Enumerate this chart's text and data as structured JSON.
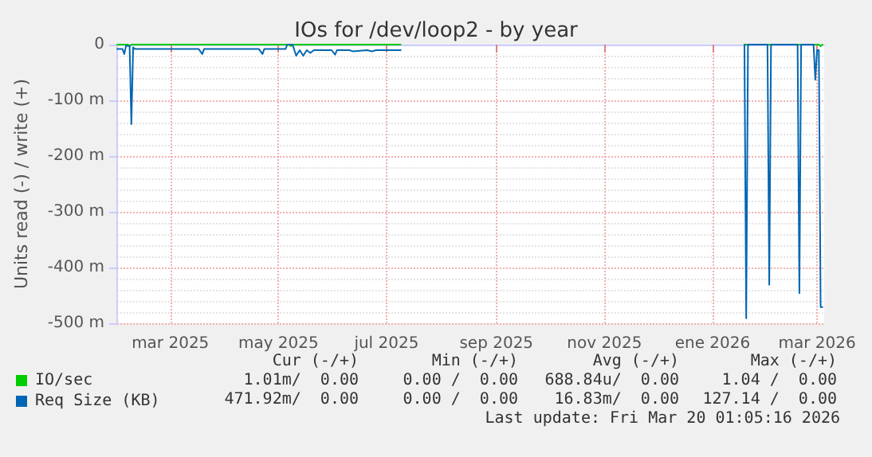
{
  "chart_data": {
    "type": "line",
    "title": "IOs for /dev/loop2 - by year",
    "ylabel": "Units read (-) / write (+)",
    "xlim": [
      "2025-02-14",
      "2026-03-20"
    ],
    "xticks": [
      {
        "value": "2025-03-16",
        "label": "mar 2025"
      },
      {
        "value": "2025-05-16",
        "label": "may 2025"
      },
      {
        "value": "2025-07-16",
        "label": "jul 2025"
      },
      {
        "value": "2025-09-16",
        "label": "sep 2025"
      },
      {
        "value": "2025-11-16",
        "label": "nov 2025"
      },
      {
        "value": "2026-01-16",
        "label": "ene 2026"
      },
      {
        "value": "2026-03-16",
        "label": "mar 2026"
      }
    ],
    "ylim": [
      -500,
      0
    ],
    "yticks": [
      {
        "value": -500,
        "label": "-500 m"
      },
      {
        "value": -400,
        "label": "-400 m"
      },
      {
        "value": -300,
        "label": "-300 m"
      },
      {
        "value": -200,
        "label": "-200 m"
      },
      {
        "value": -100,
        "label": "-100 m"
      },
      0
    ],
    "grid": true,
    "legend": "bottom left",
    "marker": "none",
    "line_style": "solid",
    "series": [
      {
        "name": "IO/sec",
        "color": "#00cc00",
        "x": [
          "2025-02-14",
          "2025-02-20",
          "2025-02-21",
          "2025-02-22",
          "2025-05-22",
          "2025-05-23",
          "2025-05-24",
          "2025-07-24",
          "2025-07-25",
          "2026-02-03",
          "2026-03-17",
          "2026-03-18",
          "2026-03-19"
        ],
        "values": [
          0,
          0,
          -3,
          0,
          0,
          -3,
          0,
          0,
          null,
          0,
          0,
          -3,
          0
        ]
      },
      {
        "name": "Req Size (KB)",
        "color": "#0066b3",
        "x": [
          "2025-02-14",
          "2025-02-17",
          "2025-02-18",
          "2025-02-19",
          "2025-02-21",
          "2025-02-22",
          "2025-02-23",
          "2025-02-24",
          "2025-03-10",
          "2025-04-01",
          "2025-04-03",
          "2025-04-04",
          "2025-05-05",
          "2025-05-07",
          "2025-05-08",
          "2025-05-20",
          "2025-05-21",
          "2025-05-24",
          "2025-05-26",
          "2025-05-28",
          "2025-05-30",
          "2025-06-01",
          "2025-06-03",
          "2025-06-05",
          "2025-06-15",
          "2025-06-17",
          "2025-06-18",
          "2025-06-25",
          "2025-06-27",
          "2025-07-05",
          "2025-07-08",
          "2025-07-10",
          "2025-07-24",
          "2025-07-25",
          "2026-02-03",
          "2026-02-04",
          "2026-02-05",
          "2026-02-16",
          "2026-02-17",
          "2026-02-18",
          "2026-03-05",
          "2026-03-06",
          "2026-03-07",
          "2026-03-14",
          "2026-03-15",
          "2026-03-16",
          "2026-03-17",
          "2026-03-18",
          "2026-03-19"
        ],
        "values": [
          -8,
          -8,
          -17,
          -2,
          -2,
          -143,
          -5,
          -8,
          -8,
          -8,
          -17,
          -8,
          -8,
          -17,
          -8,
          -8,
          0,
          0,
          -20,
          -10,
          -20,
          -10,
          -15,
          -10,
          -10,
          -18,
          -10,
          -10,
          -12,
          -10,
          -12,
          -10,
          -10,
          null,
          0,
          -491,
          0,
          0,
          -431,
          0,
          0,
          -446,
          0,
          0,
          -63,
          -10,
          -10,
          -471,
          -471
        ]
      }
    ],
    "annotations": [
      "Cur (-/+)",
      "Min (-/+)",
      "Avg (-/+)",
      "Max (-/+)",
      "1.01m/  0.00",
      "0.00 /  0.00",
      "688.84u/  0.00",
      "1.04 /  0.00",
      "471.92m/  0.00",
      "0.00 /  0.00",
      "16.83m/  0.00",
      "127.14 /  0.00",
      "Last update: Fri Mar 20 01:05:16 2026"
    ]
  }
}
